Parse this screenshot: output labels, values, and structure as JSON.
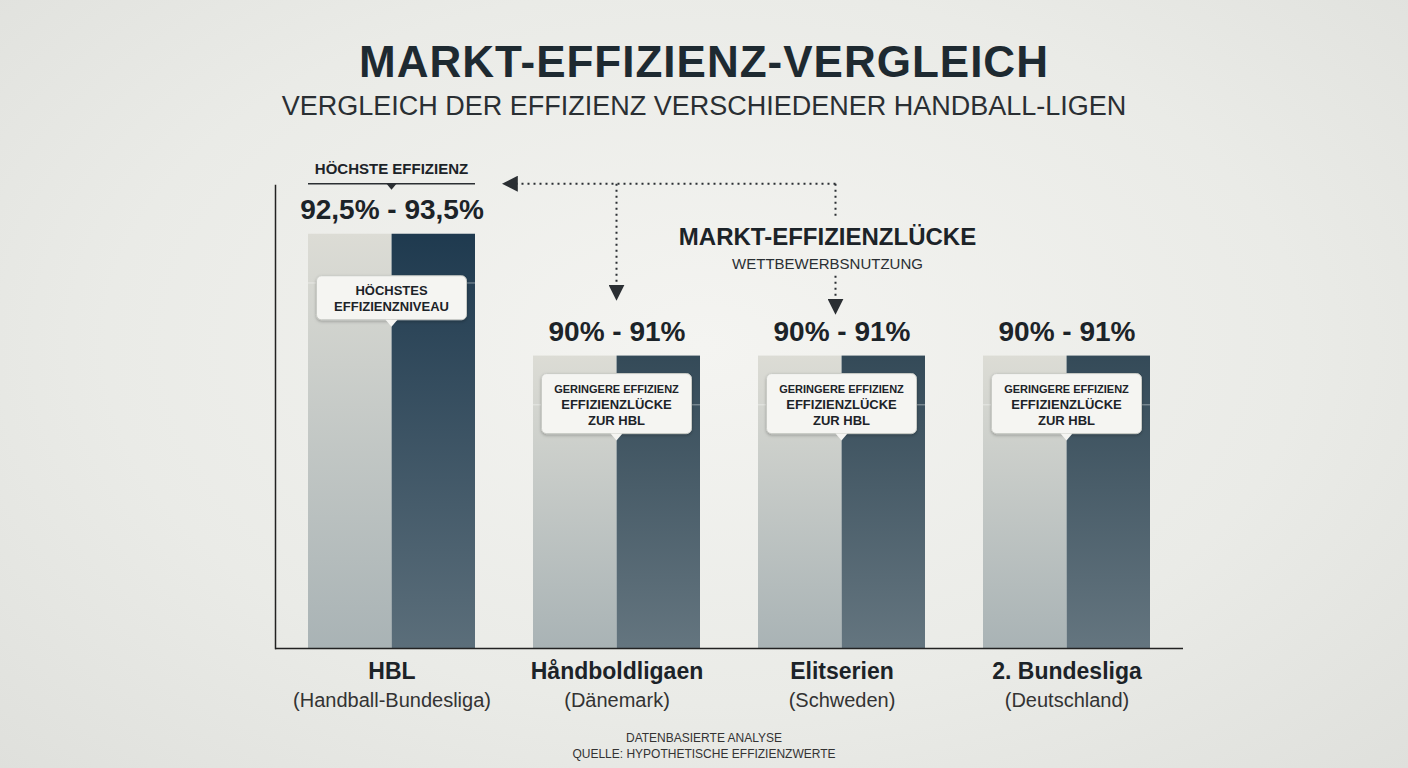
{
  "chart_data": {
    "type": "bar",
    "title": "MARKT-EFFIZIENZ-VERGLEICH",
    "subtitle": "VERGLEICH DER EFFIZIENZ VERSCHIEDENER HANDBALL-LIGEN",
    "categories": [
      "HBL",
      "Håndboldligaen",
      "Elitserien",
      "2. Bundesliga"
    ],
    "category_subtitles": [
      "(Handball-Bundesliga)",
      "(Dänemark)",
      "(Schweden)",
      "(Deutschland)"
    ],
    "values": [
      [
        92.5,
        93.5
      ],
      [
        90,
        91
      ],
      [
        90,
        91
      ],
      [
        90,
        91
      ]
    ],
    "value_labels": [
      "92,5% - 93,5%",
      "90% - 91%",
      "90% - 91%",
      "90% - 91%"
    ],
    "colors": [
      "#1f3a4f",
      "#344a58",
      "#344a58",
      "#344a58"
    ],
    "ylim": [
      85,
      94.5
    ],
    "tick_labels": false,
    "data_labels": true,
    "annotations": {
      "top_label": "HÖCHSTE EFFIZIENZ",
      "gap_title": "MARKT-EFFIZIENZLÜCKE",
      "gap_subtitle": "WETTBEWERBSNUTZUNG",
      "bar_notes": [
        [
          "HÖCHSTES",
          "EFFIZIENZNIVEAU"
        ],
        [
          "GERINGERE EFFIZIENZ",
          "EFFIZIENZLÜCKE",
          "ZUR HBL"
        ],
        [
          "GERINGERE EFFIZIENZ",
          "EFFIZIENZLÜCKE",
          "ZUR HBL"
        ],
        [
          "GERINGERE EFFIZIENZ",
          "EFFIZIENZLÜCKE",
          "ZUR HBL"
        ]
      ]
    },
    "caption": [
      "DATENBASIERTE ANALYSE",
      "QUELLE: HYPOTHETISCHE EFFIZIENZWERTE"
    ]
  }
}
